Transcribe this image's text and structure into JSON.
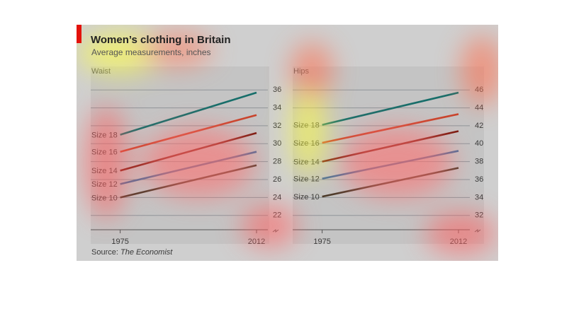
{
  "title": "Women’s clothing in Britain",
  "subtitle": "Average measurements, inches",
  "source_label": "Source:",
  "source_name": "The Economist",
  "chart_data": [
    {
      "type": "line",
      "title": "Waist",
      "x": [
        1975,
        2012
      ],
      "xlim": [
        1967,
        2014.5
      ],
      "xticks": [
        1975,
        2012
      ],
      "ylim": [
        20.4,
        37.2
      ],
      "yticks": [
        22,
        24,
        26,
        28,
        30,
        32,
        34,
        36
      ],
      "grid": true,
      "series": [
        {
          "name": "Size 18",
          "color": "#176e6a",
          "values": [
            31,
            35.7
          ]
        },
        {
          "name": "Size 16",
          "color": "#c8442c",
          "values": [
            29.1,
            33.2
          ]
        },
        {
          "name": "Size 14",
          "color": "#7a1a10",
          "values": [
            27.0,
            31.2
          ]
        },
        {
          "name": "Size 12",
          "color": "#4a6d9a",
          "values": [
            25.5,
            29.1
          ]
        },
        {
          "name": "Size 10",
          "color": "#4b3a2a",
          "values": [
            24.0,
            27.6
          ]
        }
      ]
    },
    {
      "type": "line",
      "title": "Hips",
      "x": [
        1975,
        2012
      ],
      "xlim": [
        1967,
        2014.5
      ],
      "xticks": [
        1975,
        2012
      ],
      "ylim": [
        30.4,
        47.2
      ],
      "yticks": [
        32,
        34,
        36,
        38,
        40,
        42,
        44,
        46
      ],
      "grid": true,
      "series": [
        {
          "name": "Size 18",
          "color": "#176e6a",
          "values": [
            42.1,
            45.7
          ]
        },
        {
          "name": "Size 16",
          "color": "#c8442c",
          "values": [
            40.1,
            43.3
          ]
        },
        {
          "name": "Size 14",
          "color": "#7a1a10",
          "values": [
            38.0,
            41.4
          ]
        },
        {
          "name": "Size 12",
          "color": "#4a6d9a",
          "values": [
            36.1,
            39.2
          ]
        },
        {
          "name": "Size 10",
          "color": "#4b3a2a",
          "values": [
            34.1,
            37.3
          ]
        }
      ]
    }
  ]
}
